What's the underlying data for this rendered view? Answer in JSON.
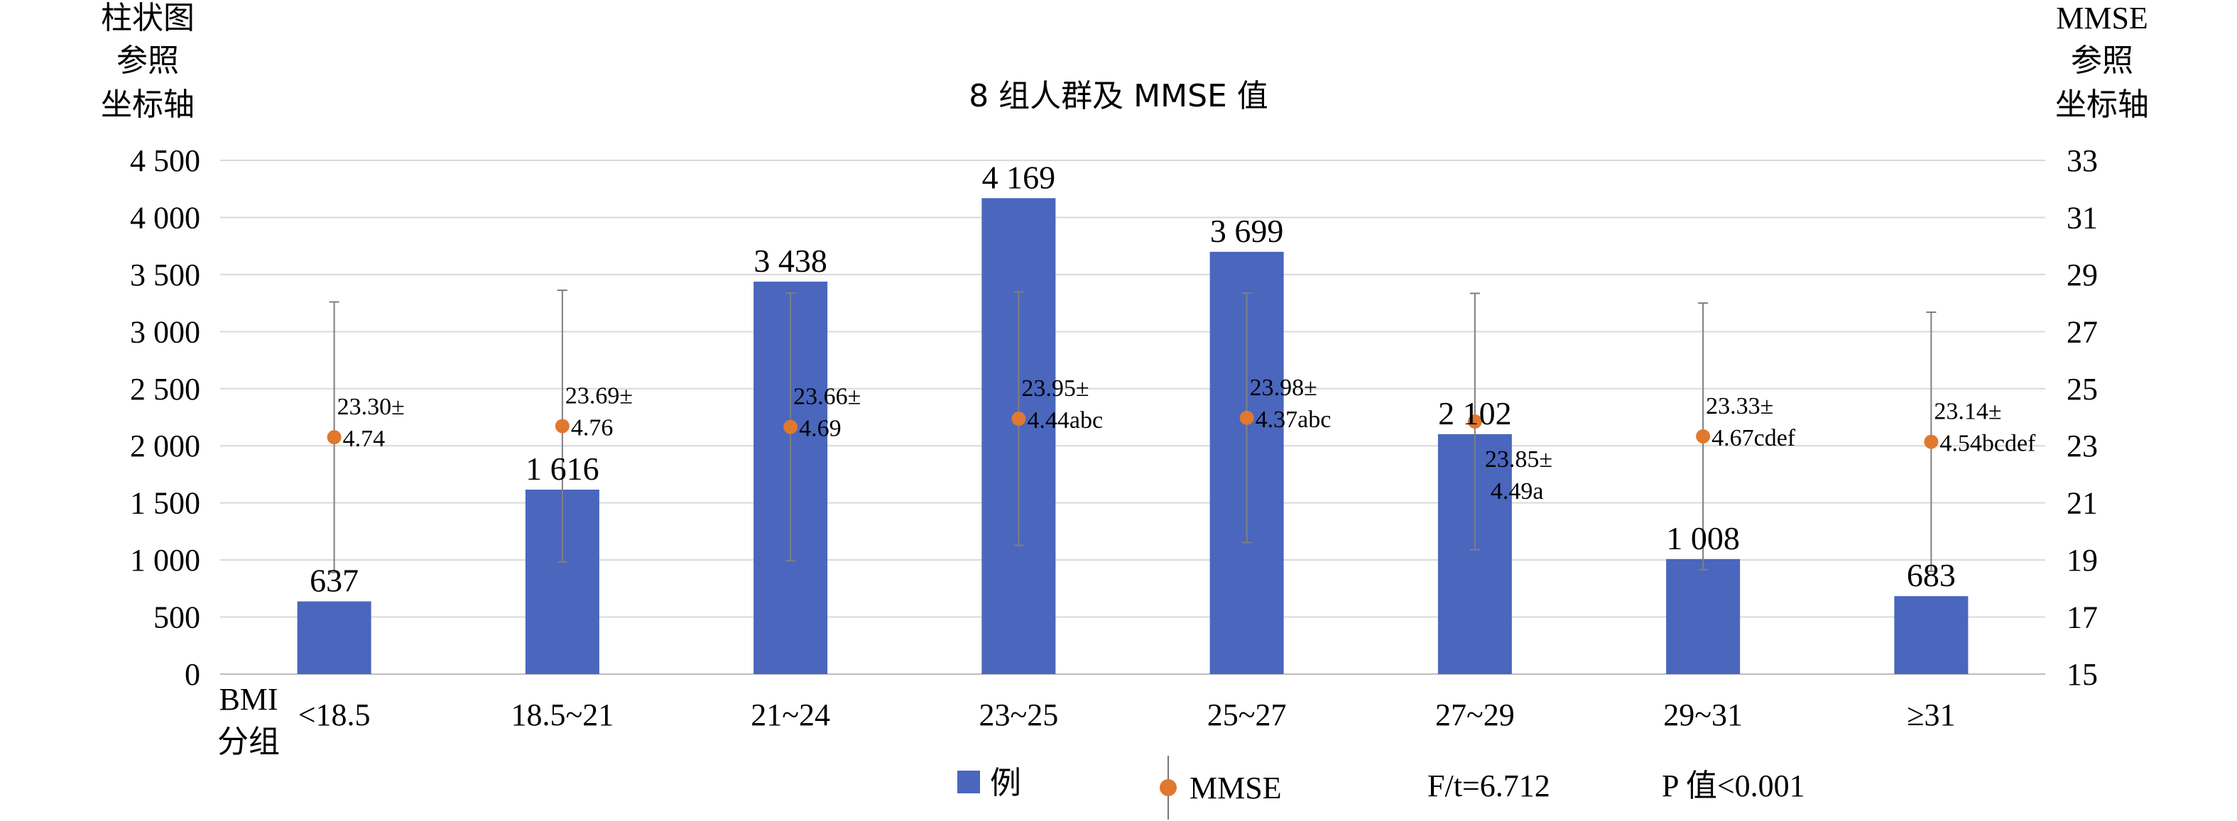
{
  "chart_data": {
    "type": "bar",
    "title": "8 组人群及 MMSE 值",
    "categories": [
      "<18.5",
      "18.5~21",
      "21~24",
      "23~25",
      "25~27",
      "27~29",
      "29~31",
      "≥31"
    ],
    "x_axis_label": [
      "BMI",
      "分组"
    ],
    "y_left_label": [
      "柱状图",
      "参照",
      "坐标轴"
    ],
    "y_right_label": [
      "MMSE",
      "参照",
      "坐标轴"
    ],
    "y_left_range": [
      0,
      4500
    ],
    "y_left_ticks": [
      "0",
      "500",
      "1 000",
      "1 500",
      "2 000",
      "2 500",
      "3 000",
      "3 500",
      "4 000",
      "4 500"
    ],
    "y_right_range": [
      15,
      33
    ],
    "y_right_ticks": [
      "15",
      "17",
      "19",
      "21",
      "23",
      "25",
      "27",
      "29",
      "31",
      "33"
    ],
    "grid": true,
    "series": [
      {
        "name": "例",
        "kind": "bar",
        "axis": "left",
        "color": "#4a66bd",
        "values": [
          637,
          1616,
          3438,
          4169,
          3699,
          2102,
          1008,
          683
        ],
        "value_labels": [
          "637",
          "1 616",
          "3 438",
          "4 169",
          "3 699",
          "2 102",
          "1 008",
          "683"
        ]
      },
      {
        "name": "MMSE",
        "kind": "point-errorbar",
        "axis": "right",
        "color": "#e0782f",
        "values": [
          23.3,
          23.69,
          23.66,
          23.95,
          23.98,
          23.85,
          23.33,
          23.14
        ],
        "errors": [
          4.74,
          4.76,
          4.69,
          4.44,
          4.37,
          4.49,
          4.67,
          4.54
        ],
        "labels": [
          [
            "23.30±",
            "4.74"
          ],
          [
            "23.69±",
            "4.76"
          ],
          [
            "23.66±",
            "4.69"
          ],
          [
            "23.95±",
            "4.44abc"
          ],
          [
            "23.98±",
            "4.37abc"
          ],
          [
            "23.85±",
            "4.49a"
          ],
          [
            "23.33±",
            "4.67cdef"
          ],
          [
            "23.14±",
            "4.54bcdef"
          ]
        ]
      }
    ],
    "legend": {
      "placement": "bottom-center",
      "entries": [
        "例",
        "MMSE"
      ],
      "stat_f": "F/t=6.712",
      "stat_p": "P 值<0.001"
    }
  }
}
